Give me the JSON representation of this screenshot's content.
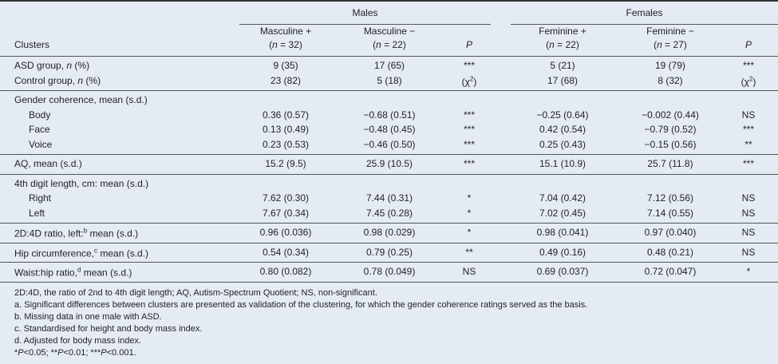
{
  "table": {
    "groups": [
      "Males",
      "Females"
    ],
    "stub_header": "Clusters",
    "columns": [
      {
        "line1": "Masculine +",
        "line2": [
          "(",
          {
            "text": "n",
            "style": "italic"
          },
          " = 32)"
        ]
      },
      {
        "line1": "Masculine −",
        "line2": [
          "(",
          {
            "text": "n",
            "style": "italic"
          },
          " = 22)"
        ]
      },
      {
        "line2": [
          {
            "text": "P",
            "style": "italic"
          }
        ]
      },
      {
        "line1": "Feminine +",
        "line2": [
          "(",
          {
            "text": "n",
            "style": "italic"
          },
          " = 22)"
        ]
      },
      {
        "line1": "Feminine −",
        "line2": [
          "(",
          {
            "text": "n",
            "style": "italic"
          },
          " = 27)"
        ]
      },
      {
        "line2": [
          {
            "text": "P",
            "style": "italic"
          }
        ]
      }
    ],
    "sections": [
      [
        {
          "label": [
            "ASD group, ",
            {
              "text": "n",
              "style": "italic"
            },
            " (%)"
          ],
          "indent": false,
          "cells": [
            "9 (35)",
            "17 (65)",
            "***",
            "5 (21)",
            "19 (79)",
            "***"
          ]
        },
        {
          "label": [
            "Control group, ",
            {
              "text": "n",
              "style": "italic"
            },
            " (%)"
          ],
          "indent": false,
          "cells": [
            "23 (82)",
            "5 (18)",
            [
              "(χ",
              {
                "text": "2",
                "style": "sup"
              },
              ")"
            ],
            "17 (68)",
            "8 (32)",
            [
              "(χ",
              {
                "text": "2",
                "style": "sup"
              },
              ")"
            ]
          ]
        }
      ],
      [
        {
          "label": "Gender coherence, mean (s.d.)",
          "indent": false
        },
        {
          "label": "Body",
          "indent": true,
          "cells": [
            "0.36 (0.57)",
            "−0.68 (0.51)",
            "***",
            "−0.25 (0.64)",
            "−0.002 (0.44)",
            "NS"
          ]
        },
        {
          "label": "Face",
          "indent": true,
          "cells": [
            "0.13 (0.49)",
            "−0.48 (0.45)",
            "***",
            "0.42 (0.54)",
            "−0.79 (0.52)",
            "***"
          ]
        },
        {
          "label": "Voice",
          "indent": true,
          "cells": [
            "0.23 (0.53)",
            "−0.46 (0.50)",
            "***",
            "0.25 (0.43)",
            "−0.15 (0.56)",
            "**"
          ]
        }
      ],
      [
        {
          "label": "AQ, mean (s.d.)",
          "indent": false,
          "cells": [
            "15.2 (9.5)",
            "25.9 (10.5)",
            "***",
            "15.1 (10.9)",
            "25.7 (11.8)",
            "***"
          ]
        }
      ],
      [
        {
          "label": "4th digit length, cm: mean (s.d.)",
          "indent": false
        },
        {
          "label": "Right",
          "indent": true,
          "cells": [
            "7.62 (0.30)",
            "7.44 (0.31)",
            "*",
            "7.04 (0.42)",
            "7.12 (0.56)",
            "NS"
          ]
        },
        {
          "label": "Left",
          "indent": true,
          "cells": [
            "7.67 (0.34)",
            "7.45 (0.28)",
            "*",
            "7.02 (0.45)",
            "7.14 (0.55)",
            "NS"
          ]
        }
      ],
      [
        {
          "label": [
            "2D:4D ratio, left:",
            {
              "text": "b",
              "style": "sup"
            },
            " mean (s.d.)"
          ],
          "indent": false,
          "cells": [
            "0.96 (0.036)",
            "0.98 (0.029)",
            "*",
            "0.98 (0.041)",
            "0.97 (0.040)",
            "NS"
          ]
        }
      ],
      [
        {
          "label": [
            "Hip circumference,",
            {
              "text": "c",
              "style": "sup"
            },
            " mean (s.d.)"
          ],
          "indent": false,
          "cells": [
            "0.54 (0.34)",
            "0.79 (0.25)",
            "**",
            "0.49 (0.16)",
            "0.48 (0.21)",
            "NS"
          ]
        }
      ],
      [
        {
          "label": [
            "Waist:hip ratio,",
            {
              "text": "d",
              "style": "sup"
            },
            " mean (s.d.)"
          ],
          "indent": false,
          "cells": [
            "0.80 (0.082)",
            "0.78 (0.049)",
            "NS",
            "0.69 (0.037)",
            "0.72 (0.047)",
            "*"
          ]
        }
      ]
    ]
  },
  "footnotes": [
    "2D:4D, the ratio of 2nd to 4th digit length; AQ, Autism-Spectrum Quotient; NS, non-significant.",
    "a. Significant differences between clusters are presented as validation of the clustering, for which the gender coherence ratings served as the basis.",
    "b. Missing data in one male with ASD.",
    "c. Standardised for height and body mass index.",
    "d. Adjusted for body mass index.",
    [
      "*",
      {
        "text": "P",
        "style": "italic"
      },
      "<0.05; **",
      {
        "text": "P",
        "style": "italic"
      },
      "<0.01; ***",
      {
        "text": "P",
        "style": "italic"
      },
      "<0.001."
    ]
  ]
}
